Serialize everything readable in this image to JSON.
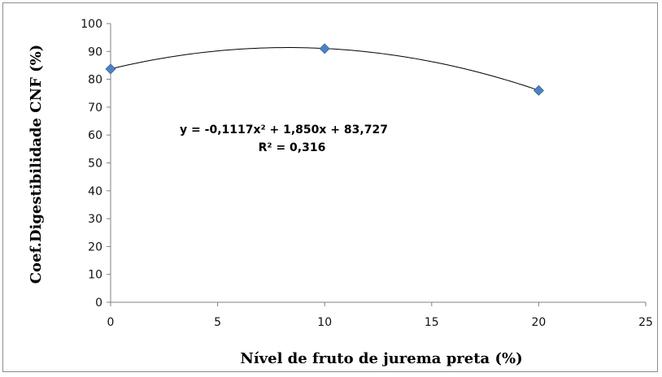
{
  "chart_data": {
    "type": "scatter",
    "title": "",
    "xlabel": "Nível de fruto de jurema preta (%)",
    "ylabel": "Coef.Digestibilidade CNF (%)",
    "xlim": [
      0,
      25
    ],
    "ylim": [
      0,
      100
    ],
    "x_ticks": [
      0,
      5,
      10,
      15,
      20,
      25
    ],
    "y_ticks": [
      0,
      10,
      20,
      30,
      40,
      50,
      60,
      70,
      80,
      90,
      100
    ],
    "grid": false,
    "legend": "none",
    "series": [
      {
        "marker": "diamond",
        "color": "#4f81bd",
        "x": [
          0,
          10,
          20
        ],
        "y": [
          83.7,
          91.0,
          76.0
        ]
      }
    ],
    "trendline": {
      "type": "polynomial",
      "coefficients": {
        "a": -0.1117,
        "b": 1.85,
        "c": 83.727
      },
      "x_range": [
        0,
        20
      ],
      "color": "#000000"
    },
    "annotations": {
      "equation": "y = -0,1117x² + 1,850x + 83,727",
      "r_squared": "R² = 0,316"
    }
  }
}
